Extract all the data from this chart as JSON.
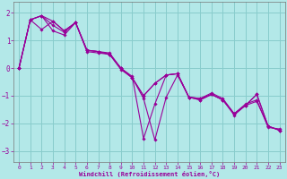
{
  "xlabel": "Windchill (Refroidissement éolien,°C)",
  "bg_color": "#b3e8e8",
  "line_color": "#990099",
  "grid_color": "#88cccc",
  "xlim": [
    -0.5,
    23.5
  ],
  "ylim": [
    -3.4,
    2.4
  ],
  "yticks": [
    -3,
    -2,
    -1,
    0,
    1,
    2
  ],
  "xticks": [
    0,
    1,
    2,
    3,
    4,
    5,
    6,
    7,
    8,
    9,
    10,
    11,
    12,
    13,
    14,
    15,
    16,
    17,
    18,
    19,
    20,
    21,
    22,
    23
  ],
  "series": [
    [
      0.0,
      1.75,
      1.9,
      1.35,
      1.2,
      1.65,
      0.6,
      0.55,
      0.5,
      -0.05,
      -0.35,
      -1.1,
      -2.6,
      -1.05,
      -0.25,
      -1.05,
      -1.1,
      -0.95,
      -1.15,
      -1.7,
      -1.35,
      -1.2,
      -2.1,
      -2.25
    ],
    [
      0.0,
      1.75,
      1.9,
      1.55,
      1.3,
      1.65,
      0.65,
      0.6,
      0.55,
      0.0,
      -0.3,
      -2.55,
      -1.3,
      -0.25,
      -0.2,
      -1.05,
      -1.1,
      -0.9,
      -1.1,
      -1.65,
      -1.3,
      -1.15,
      -2.15,
      -2.2
    ],
    [
      0.0,
      1.75,
      1.4,
      1.7,
      1.35,
      1.65,
      0.65,
      0.6,
      0.5,
      0.0,
      -0.35,
      -1.0,
      -0.55,
      -0.25,
      -0.2,
      -1.05,
      -1.15,
      -0.95,
      -1.15,
      -1.65,
      -1.35,
      -0.95,
      -2.1,
      -2.25
    ],
    [
      0.0,
      1.75,
      1.9,
      1.7,
      1.35,
      1.65,
      0.65,
      0.6,
      0.5,
      0.0,
      -0.35,
      -1.0,
      -0.55,
      -0.25,
      -0.2,
      -1.05,
      -1.15,
      -0.95,
      -1.15,
      -1.65,
      -1.35,
      -0.95,
      -2.1,
      -2.25
    ]
  ]
}
